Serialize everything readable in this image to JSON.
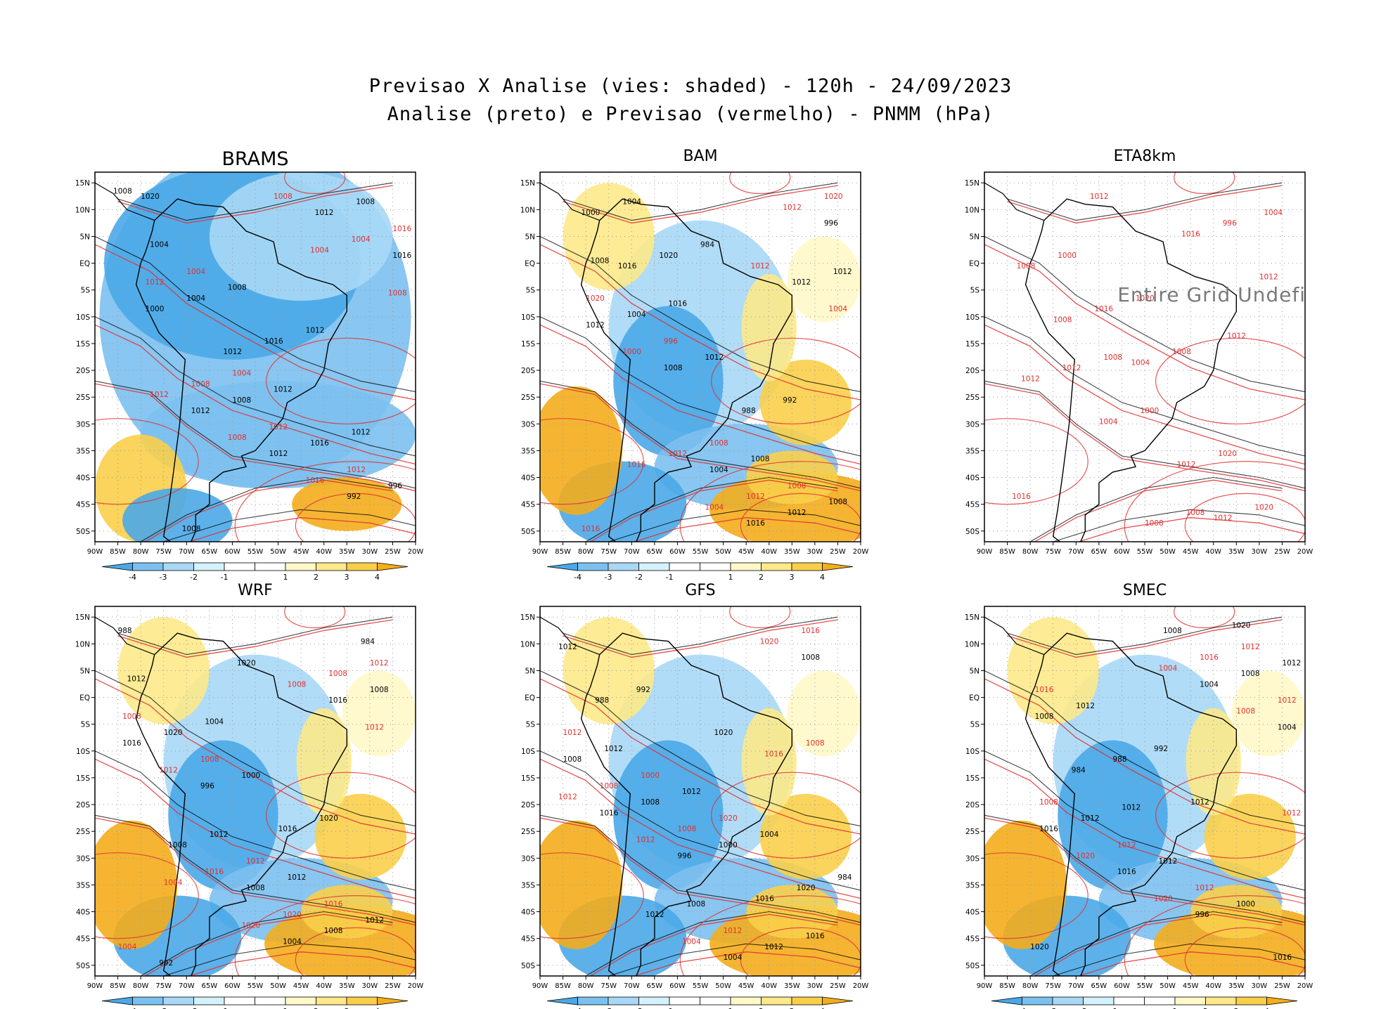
{
  "title_lines": [
    "Previsao X Analise (vies: shaded) - 120h - 24/09/2023",
    "Analise (preto) e Previsao (vermelho) - PNMM (hPa)"
  ],
  "colors": {
    "bias_neg4": "#4aa8e8",
    "bias_neg3": "#7cc0f0",
    "bias_neg2": "#a8d8f6",
    "bias_neg1": "#d4f2fc",
    "bias_pos1": "#fff8c8",
    "bias_pos2": "#fde98a",
    "bias_pos3": "#f9cf4a",
    "bias_pos4": "#f4ad1c",
    "analysis_contour": "#000000",
    "forecast_contour": "#e03030"
  },
  "colorbar_labels": [
    "-4",
    "-3",
    "-2",
    "-1",
    "1",
    "2",
    "3",
    "4"
  ],
  "x_ticks": [
    "90W",
    "85W",
    "80W",
    "75W",
    "70W",
    "65W",
    "60W",
    "55W",
    "50W",
    "45W",
    "40W",
    "35W",
    "30W",
    "25W",
    "20W"
  ],
  "y_ticks": [
    "15N",
    "10N",
    "5N",
    "EQ",
    "5S",
    "10S",
    "15S",
    "20S",
    "25S",
    "30S",
    "35S",
    "40S",
    "45S",
    "50S"
  ],
  "panels": [
    {
      "title": "BRAMS",
      "message": "",
      "has_shading": true,
      "pattern": "cool",
      "labels_black": [
        "1008",
        "1008",
        "1012",
        "1012",
        "1008",
        "1012",
        "1004",
        "1016",
        "1012",
        "1016",
        "1012",
        "1008",
        "1004",
        "1000",
        "996",
        "992",
        "1012",
        "1016",
        "1012",
        "1008",
        "1020"
      ],
      "labels_red": [
        "1008",
        "1004",
        "1008",
        "1012",
        "1016",
        "1004",
        "1004",
        "1012",
        "1008",
        "1004",
        "1012",
        "1008",
        "1012",
        "1016"
      ]
    },
    {
      "title": "BAM",
      "message": "",
      "has_shading": true,
      "pattern": "mixed",
      "labels_black": [
        "1008",
        "1012",
        "1012",
        "1008",
        "1004",
        "1016",
        "1004",
        "1012",
        "1008",
        "1012",
        "1016",
        "1012",
        "1008",
        "1004",
        "1000",
        "996",
        "992",
        "988",
        "984",
        "1020",
        "1016"
      ],
      "labels_red": [
        "1012",
        "1008",
        "1012",
        "1016",
        "1020",
        "1004",
        "1008",
        "1012",
        "1004",
        "996",
        "1000",
        "1016",
        "1020",
        "1012"
      ]
    },
    {
      "title": "ETA8km",
      "message": "Entire Grid Undefined",
      "has_shading": false,
      "pattern": "none",
      "labels_black": [],
      "labels_red": [
        "1012",
        "1008",
        "1008",
        "1008",
        "1012",
        "1012",
        "1004",
        "996",
        "1016",
        "1000",
        "1004",
        "1000",
        "1008",
        "1012",
        "1020",
        "1012",
        "1020",
        "1016",
        "1008",
        "1016",
        "1020",
        "1012",
        "1008",
        "1004",
        "1012"
      ]
    },
    {
      "title": "WRF",
      "message": "",
      "has_shading": true,
      "pattern": "mixed",
      "labels_black": [
        "1012",
        "1008",
        "1012",
        "1008",
        "1016",
        "1012",
        "1008",
        "1004",
        "1020",
        "1016",
        "1012",
        "1008",
        "1004",
        "1000",
        "996",
        "992",
        "988",
        "984",
        "1020",
        "1016",
        "1020"
      ],
      "labels_red": [
        "1012",
        "1008",
        "1008",
        "1012",
        "1016",
        "1004",
        "1008",
        "1012",
        "1016",
        "1020",
        "1020",
        "1008",
        "1012",
        "1004"
      ]
    },
    {
      "title": "GFS",
      "message": "",
      "has_shading": true,
      "pattern": "mixed",
      "labels_black": [
        "1008",
        "1012",
        "1012",
        "1008",
        "1016",
        "1012",
        "1004",
        "1012",
        "1008",
        "1016",
        "1012",
        "1008",
        "1004",
        "1000",
        "996",
        "992",
        "988",
        "984",
        "1020",
        "1016",
        "1020"
      ],
      "labels_red": [
        "1012",
        "1008",
        "1016",
        "1012",
        "1004",
        "1000",
        "1008",
        "1012",
        "1016",
        "1020",
        "1020",
        "1008",
        "1012"
      ]
    },
    {
      "title": "SMEC",
      "message": "",
      "has_shading": true,
      "pattern": "mixed",
      "labels_black": [
        "1008",
        "1012",
        "1012",
        "1016",
        "1012",
        "1008",
        "1004",
        "1012",
        "1016",
        "1012",
        "1008",
        "1004",
        "1000",
        "996",
        "992",
        "988",
        "984",
        "1020",
        "1016",
        "1020",
        "1012"
      ],
      "labels_red": [
        "1008",
        "1012",
        "1012",
        "1016",
        "1004",
        "1012",
        "1020",
        "1016",
        "1012",
        "1008",
        "1012",
        "1020"
      ]
    }
  ],
  "chart_data": [
    {
      "type": "heatmap",
      "title": "BRAMS",
      "x_range": [
        "90W",
        "20W"
      ],
      "y_range": [
        "52S",
        "17N"
      ],
      "shading": "vies (bias) PNMM hPa",
      "bias_scale": [
        -4,
        -3,
        -2,
        -1,
        1,
        2,
        3,
        4
      ],
      "grid": true
    },
    {
      "type": "heatmap",
      "title": "BAM",
      "x_range": [
        "90W",
        "20W"
      ],
      "y_range": [
        "52S",
        "17N"
      ],
      "shading": "vies (bias) PNMM hPa",
      "bias_scale": [
        -4,
        -3,
        -2,
        -1,
        1,
        2,
        3,
        4
      ],
      "grid": true
    },
    {
      "type": "heatmap",
      "title": "ETA8km",
      "x_range": [
        "90W",
        "20W"
      ],
      "y_range": [
        "52S",
        "17N"
      ],
      "shading": "none",
      "grid": true
    },
    {
      "type": "heatmap",
      "title": "WRF",
      "x_range": [
        "90W",
        "20W"
      ],
      "y_range": [
        "52S",
        "17N"
      ],
      "shading": "vies (bias) PNMM hPa",
      "bias_scale": [
        -4,
        -3,
        -2,
        -1,
        1,
        2,
        3,
        4
      ],
      "grid": true
    },
    {
      "type": "heatmap",
      "title": "GFS",
      "x_range": [
        "90W",
        "20W"
      ],
      "y_range": [
        "52S",
        "17N"
      ],
      "shading": "vies (bias) PNMM hPa",
      "bias_scale": [
        -4,
        -3,
        -2,
        -1,
        1,
        2,
        3,
        4
      ],
      "grid": true
    },
    {
      "type": "heatmap",
      "title": "SMEC",
      "x_range": [
        "90W",
        "20W"
      ],
      "y_range": [
        "52S",
        "17N"
      ],
      "shading": "vies (bias) PNMM hPa",
      "bias_scale": [
        -4,
        -3,
        -2,
        -1,
        1,
        2,
        3,
        4
      ],
      "grid": true
    }
  ]
}
